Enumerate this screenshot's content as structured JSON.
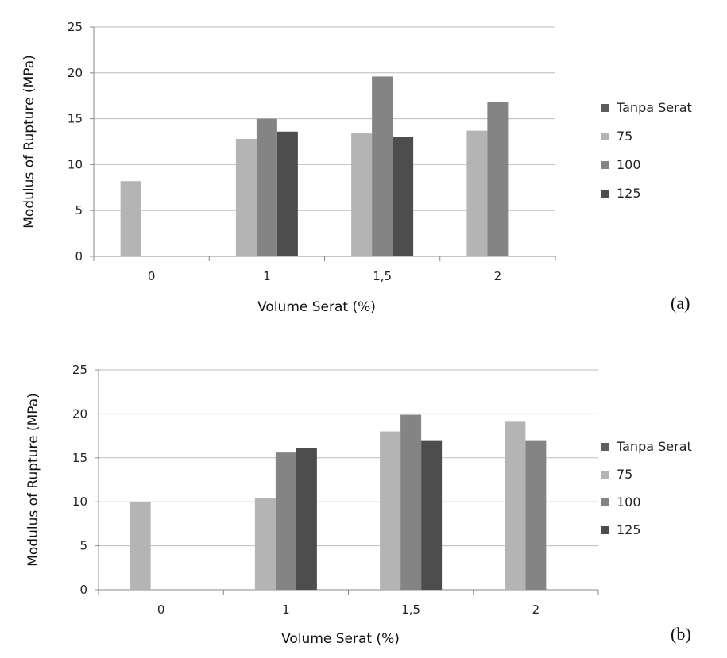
{
  "chart_data": [
    {
      "type": "bar",
      "panel_label": "(a)",
      "categories": [
        "0",
        "1",
        "1,5",
        "2"
      ],
      "xlabel": "Volume Serat (%)",
      "ylabel": "Modulus of Rupture (MPa)",
      "ylim": [
        0,
        25
      ],
      "yticks": [
        "0",
        "5",
        "10",
        "15",
        "20",
        "25"
      ],
      "grid": true,
      "legend_position": "right",
      "series": [
        {
          "name": "Tanpa Serat",
          "color": "#5e5e5e",
          "values": [
            null,
            null,
            null,
            null
          ]
        },
        {
          "name": "75",
          "color": "#b4b4b4",
          "values": [
            8.2,
            12.8,
            13.4,
            13.7
          ]
        },
        {
          "name": "100",
          "color": "#848484",
          "values": [
            null,
            15.0,
            19.6,
            16.8
          ]
        },
        {
          "name": "125",
          "color": "#4d4d4d",
          "values": [
            null,
            13.6,
            13.0,
            null
          ]
        }
      ]
    },
    {
      "type": "bar",
      "panel_label": "(b)",
      "categories": [
        "0",
        "1",
        "1,5",
        "2"
      ],
      "xlabel": "Volume Serat (%)",
      "ylabel": "Modulus of Rupture (MPa)",
      "ylim": [
        0,
        25
      ],
      "yticks": [
        "0",
        "5",
        "10",
        "15",
        "20",
        "25"
      ],
      "grid": true,
      "legend_position": "right",
      "series": [
        {
          "name": "Tanpa Serat",
          "color": "#5e5e5e",
          "values": [
            null,
            null,
            null,
            null
          ]
        },
        {
          "name": "75",
          "color": "#b4b4b4",
          "values": [
            10.0,
            10.4,
            18.0,
            19.1
          ]
        },
        {
          "name": "100",
          "color": "#848484",
          "values": [
            null,
            15.6,
            19.9,
            17.0
          ]
        },
        {
          "name": "125",
          "color": "#4d4d4d",
          "values": [
            null,
            16.1,
            17.0,
            null
          ]
        }
      ]
    }
  ]
}
